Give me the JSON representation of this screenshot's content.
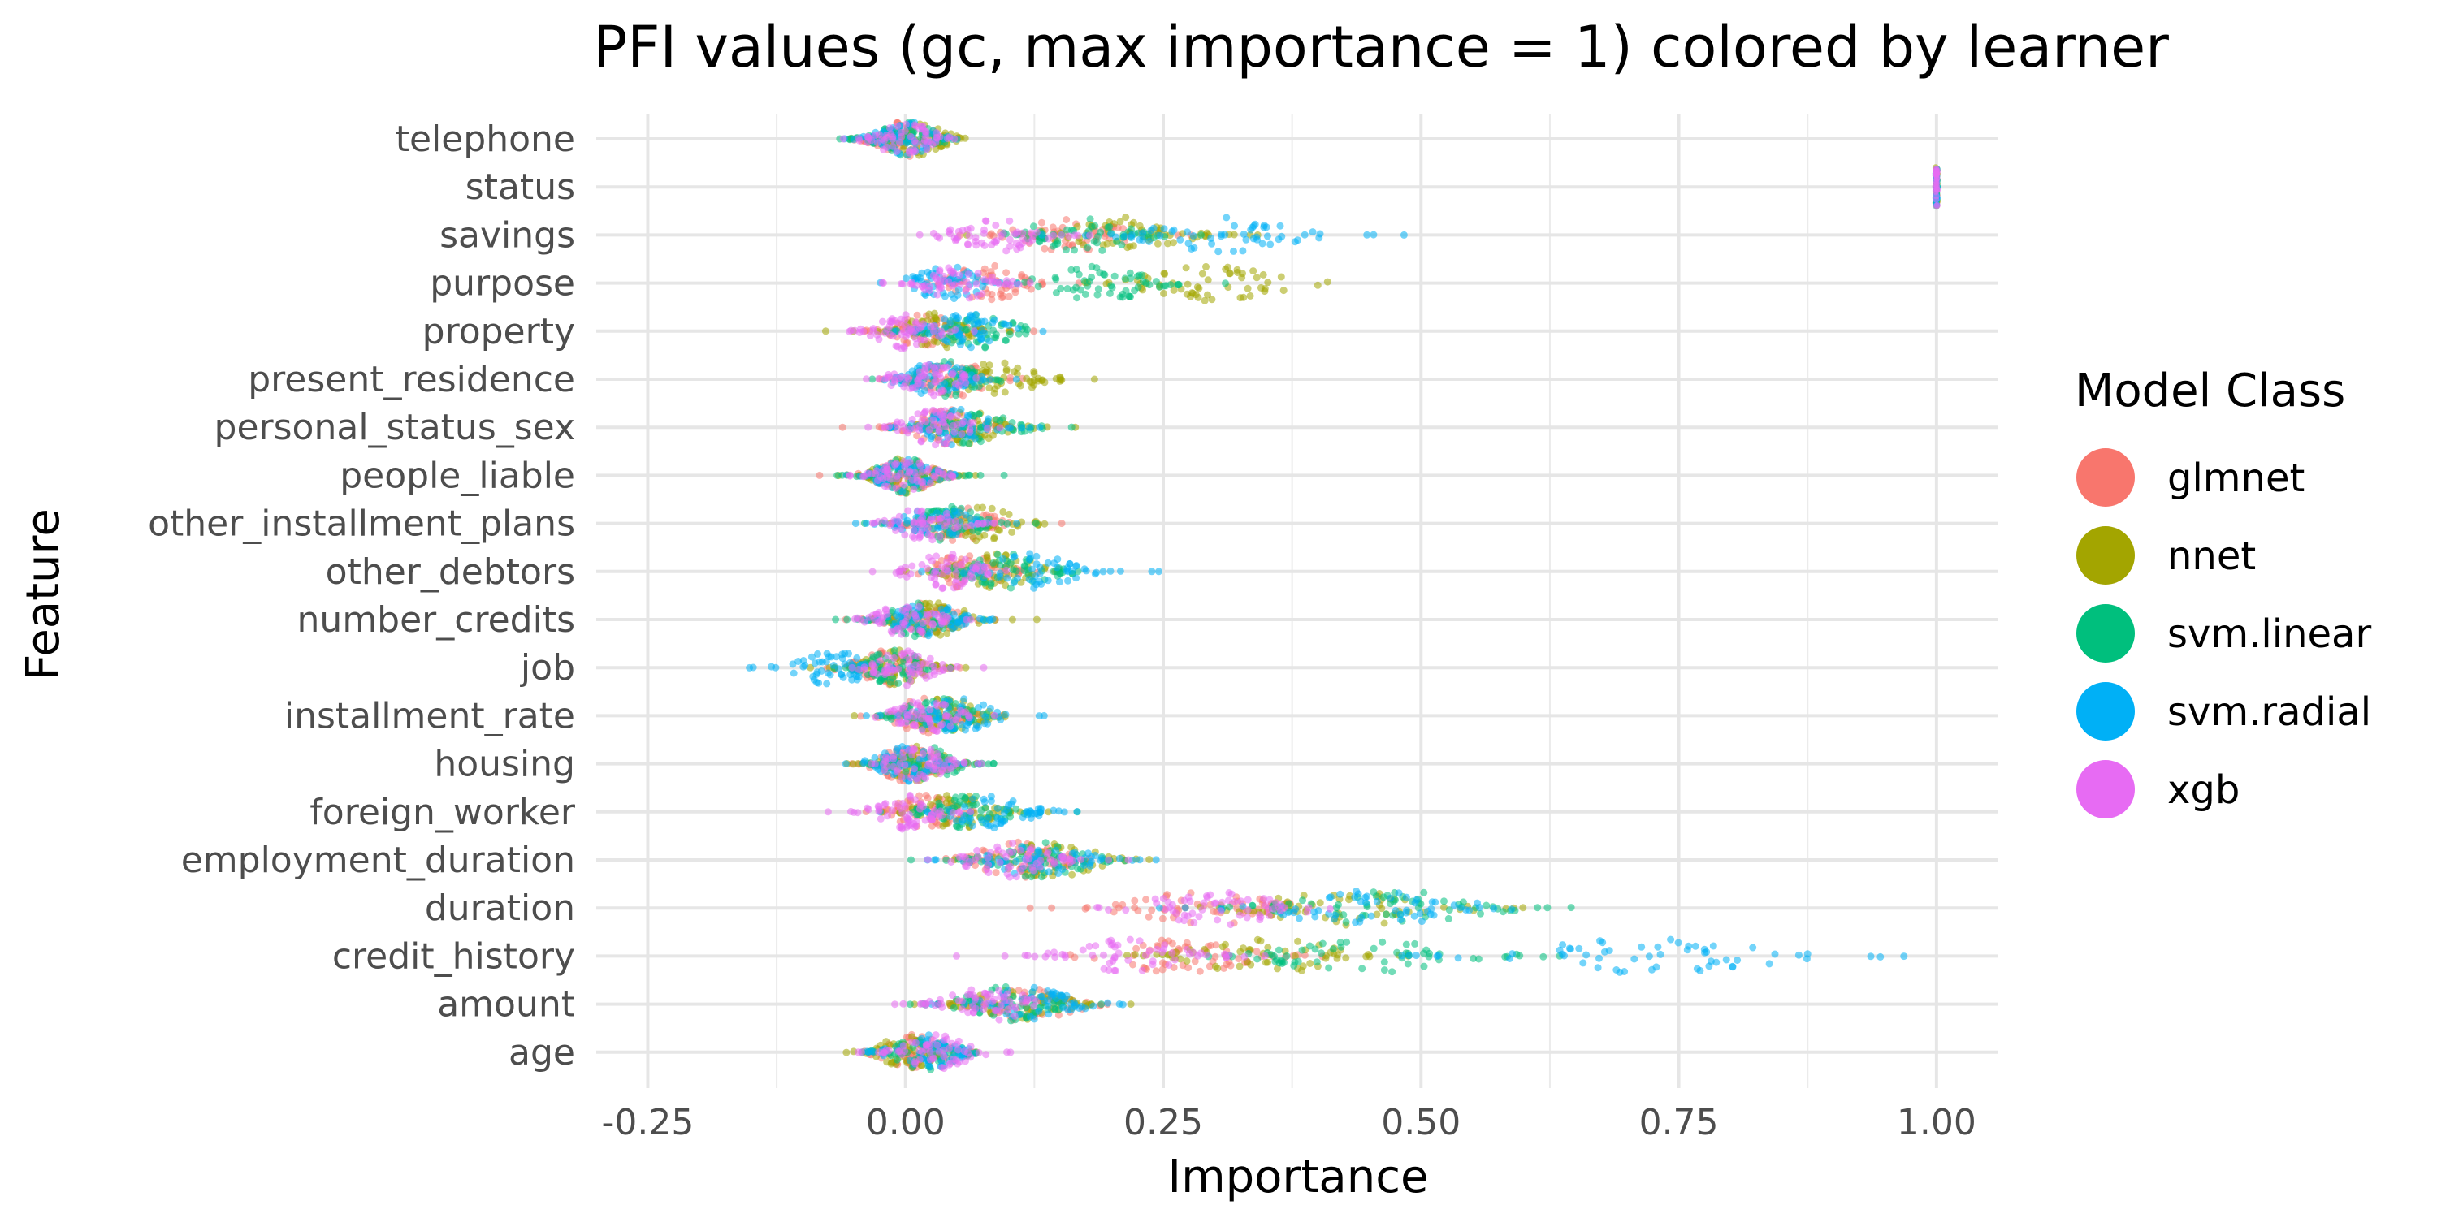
{
  "chart_data": {
    "type": "scatter",
    "title": "PFI values (gc, max importance = 1) colored by learner",
    "xlabel": "Importance",
    "ylabel": "Feature",
    "xlim": [
      -0.3,
      1.06
    ],
    "x_ticks": [
      -0.25,
      0.0,
      0.25,
      0.5,
      0.75,
      1.0
    ],
    "x_tick_labels": [
      "-0.25",
      "0.00",
      "0.25",
      "0.50",
      "0.75",
      "1.00"
    ],
    "grid": true,
    "legend_position": "right",
    "legend_title": "Model Class",
    "categories": [
      "telephone",
      "status",
      "savings",
      "purpose",
      "property",
      "present_residence",
      "personal_status_sex",
      "people_liable",
      "other_installment_plans",
      "other_debtors",
      "number_credits",
      "job",
      "installment_rate",
      "housing",
      "foreign_worker",
      "employment_duration",
      "duration",
      "credit_history",
      "amount",
      "age"
    ],
    "series": [
      {
        "name": "glmnet",
        "color": "#F8766D",
        "center": [
          0.0,
          1.0,
          0.16,
          0.08,
          0.02,
          0.05,
          0.04,
          0.0,
          0.05,
          0.06,
          0.02,
          -0.02,
          0.02,
          0.0,
          0.02,
          0.11,
          0.29,
          0.27,
          0.12,
          0.01
        ]
      },
      {
        "name": "nnet",
        "color": "#A3A500",
        "center": [
          0.01,
          1.0,
          0.21,
          0.3,
          0.03,
          0.09,
          0.06,
          0.0,
          0.07,
          0.09,
          0.03,
          -0.01,
          0.04,
          0.01,
          0.05,
          0.14,
          0.43,
          0.35,
          0.11,
          0.0
        ]
      },
      {
        "name": "svm.linear",
        "color": "#00BF7D",
        "center": [
          0.0,
          1.0,
          0.17,
          0.19,
          0.07,
          0.04,
          0.07,
          0.0,
          0.04,
          0.1,
          0.01,
          -0.01,
          0.03,
          0.02,
          0.06,
          0.13,
          0.47,
          0.45,
          0.1,
          0.02
        ]
      },
      {
        "name": "svm.radial",
        "color": "#00B0F6",
        "center": [
          0.0,
          1.0,
          0.31,
          0.04,
          0.06,
          0.03,
          0.05,
          0.0,
          0.03,
          0.12,
          0.02,
          -0.07,
          0.05,
          0.0,
          0.08,
          0.13,
          0.45,
          0.72,
          0.12,
          0.02
        ]
      },
      {
        "name": "xgb",
        "color": "#E76BF3",
        "center": [
          0.0,
          1.0,
          0.09,
          0.05,
          0.0,
          0.02,
          0.03,
          0.0,
          0.02,
          0.04,
          0.0,
          0.0,
          0.02,
          0.01,
          0.0,
          0.1,
          0.3,
          0.22,
          0.08,
          0.03
        ]
      }
    ]
  }
}
